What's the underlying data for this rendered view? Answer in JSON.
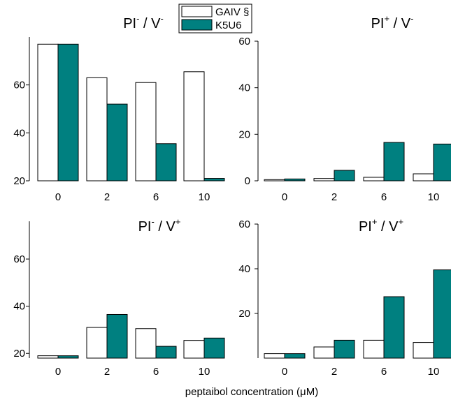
{
  "colors": {
    "gaiv": "#ffffff",
    "k5u6": "#008080",
    "stroke": "#000000"
  },
  "legend": {
    "position": "top-center",
    "items": [
      {
        "label": "GAIV §",
        "color": "#ffffff"
      },
      {
        "label": "K5U6",
        "color": "#008080"
      }
    ]
  },
  "xlabel": "peptaibol concentration (μM)",
  "chart_data": [
    {
      "type": "bar",
      "title": {
        "base": "PI",
        "sup1": "-",
        "mid": " / V",
        "sup2": "-"
      },
      "categories": [
        "0",
        "2",
        "6",
        "10"
      ],
      "series": [
        {
          "name": "GAIV §",
          "values": [
            77,
            63,
            61,
            65.5
          ]
        },
        {
          "name": "K5U6",
          "values": [
            77,
            52,
            35.5,
            21
          ]
        }
      ],
      "ylim": [
        20,
        80
      ],
      "yticks": [
        "20",
        "40",
        "60"
      ],
      "grid": false
    },
    {
      "type": "bar",
      "title": {
        "base": "PI",
        "sup1": "+",
        "mid": " / V",
        "sup2": "-"
      },
      "categories": [
        "0",
        "2",
        "6",
        "10"
      ],
      "series": [
        {
          "name": "GAIV §",
          "values": [
            0.5,
            1,
            1.5,
            3
          ]
        },
        {
          "name": "K5U6",
          "values": [
            0.8,
            4.5,
            16.5,
            15.8
          ]
        }
      ],
      "ylim": [
        0,
        60
      ],
      "yticks": [
        "0",
        "20",
        "40",
        "60"
      ],
      "grid": false
    },
    {
      "type": "bar",
      "title": {
        "base": "PI",
        "sup1": "-",
        "mid": " / V",
        "sup2": "+"
      },
      "categories": [
        "0",
        "2",
        "6",
        "10"
      ],
      "series": [
        {
          "name": "GAIV §",
          "values": [
            19,
            31,
            30.5,
            25.5
          ]
        },
        {
          "name": "K5U6",
          "values": [
            19,
            36.5,
            23,
            26.5
          ]
        }
      ],
      "ylim": [
        18,
        76
      ],
      "yticks": [
        "20",
        "40",
        "60"
      ],
      "grid": false
    },
    {
      "type": "bar",
      "title": {
        "base": "PI",
        "sup1": "+",
        "mid": " / V",
        "sup2": "+"
      },
      "categories": [
        "0",
        "2",
        "6",
        "10"
      ],
      "series": [
        {
          "name": "GAIV §",
          "values": [
            2,
            5,
            8,
            7
          ]
        },
        {
          "name": "K5U6",
          "values": [
            2,
            8,
            27.5,
            39.5
          ]
        }
      ],
      "ylim": [
        0,
        60
      ],
      "yticks": [
        "20",
        "40",
        "60"
      ],
      "grid": false
    }
  ]
}
